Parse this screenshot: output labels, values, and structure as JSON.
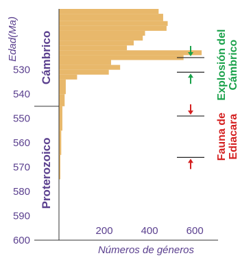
{
  "chart_data": {
    "type": "bar",
    "orientation": "horizontal",
    "ylabel": "Edad(Ma)",
    "xlabel": "Números de géneros",
    "ylim": [
      505,
      600
    ],
    "xlim": [
      0,
      660
    ],
    "yticks": [
      530,
      540,
      550,
      560,
      570,
      580,
      590,
      600
    ],
    "xticks": [
      200,
      400,
      600
    ],
    "bar_color": "#e8b86b",
    "bins": [
      {
        "from": 505,
        "to": 507,
        "value": 440
      },
      {
        "from": 507,
        "to": 510,
        "value": 460
      },
      {
        "from": 510,
        "to": 512,
        "value": 480
      },
      {
        "from": 512,
        "to": 514,
        "value": 475
      },
      {
        "from": 514,
        "to": 516,
        "value": 380
      },
      {
        "from": 516,
        "to": 518,
        "value": 370
      },
      {
        "from": 518,
        "to": 520,
        "value": 330
      },
      {
        "from": 520,
        "to": 522,
        "value": 300
      },
      {
        "from": 522,
        "to": 524,
        "value": 630
      },
      {
        "from": 524,
        "to": 526,
        "value": 550
      },
      {
        "from": 526,
        "to": 528,
        "value": 230
      },
      {
        "from": 528,
        "to": 530,
        "value": 270
      },
      {
        "from": 530,
        "to": 532,
        "value": 220
      },
      {
        "from": 532,
        "to": 534,
        "value": 80
      },
      {
        "from": 534,
        "to": 540,
        "value": 30
      },
      {
        "from": 540,
        "to": 545,
        "value": 25
      },
      {
        "from": 545,
        "to": 555,
        "value": 15
      },
      {
        "from": 555,
        "to": 565,
        "value": 10
      },
      {
        "from": 565,
        "to": 575,
        "value": 6
      }
    ],
    "periods": [
      {
        "name": "Cámbrico",
        "from": 505,
        "to": 545
      },
      {
        "name": "Proterozoico",
        "from": 545,
        "to": 600
      }
    ],
    "boundary": 545,
    "events": [
      {
        "label_lines": [
          "Explosión del",
          "Cámbrico"
        ],
        "color": "#1aa14a",
        "from": 525,
        "to": 531
      },
      {
        "label_lines": [
          "Fauna de",
          "Ediacara"
        ],
        "color": "#d42020",
        "from": 549,
        "to": 566
      }
    ]
  }
}
